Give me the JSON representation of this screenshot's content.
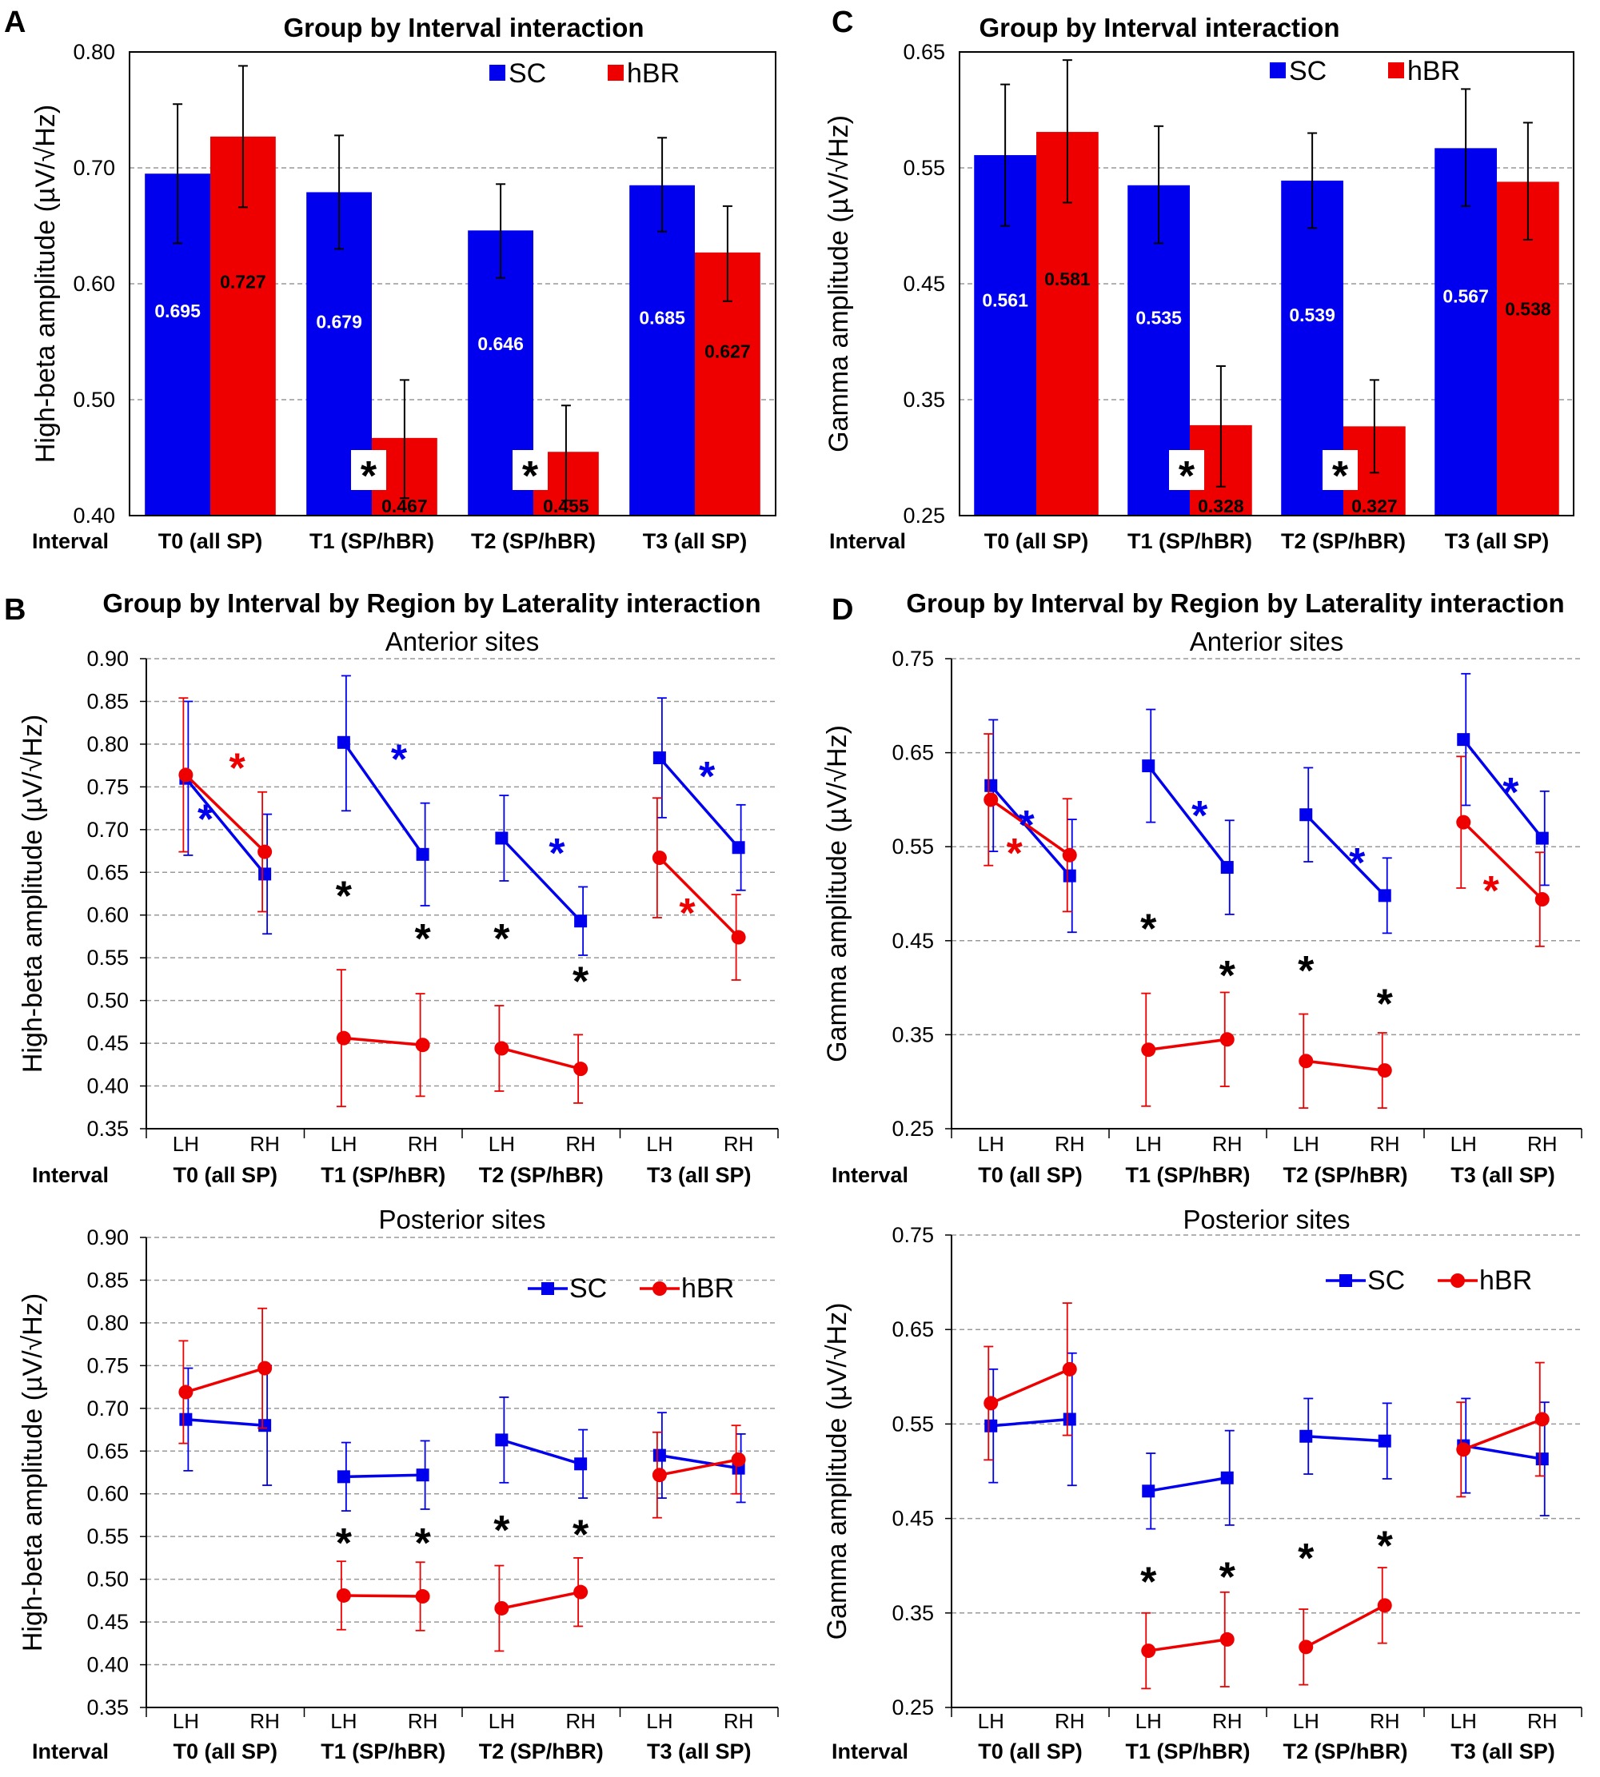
{
  "figure": {
    "colors": {
      "SC": "#0000ee",
      "hBR": "#ee0000",
      "grid": "#999999",
      "axis": "#000000"
    },
    "panels": [
      {
        "letter": "A",
        "title": "Group by Interval interaction",
        "ylabel": "High-beta amplitude (µV/√Hz)",
        "interval_label": "Interval",
        "legend": [
          "SC",
          "hBR"
        ]
      },
      {
        "letter": "C",
        "title": "Group by Interval interaction",
        "ylabel": "Gamma amplitude (µV/√Hz)",
        "interval_label": "Interval",
        "legend": [
          "SC",
          "hBR"
        ]
      },
      {
        "letter": "B",
        "title": "Group by Interval by Region by Laterality interaction",
        "ylabel": "High-beta amplitude (µV/√Hz)",
        "interval_label": "Interval",
        "subplots": [
          "Anterior sites",
          "Posterior sites"
        ],
        "legend": [
          "SC",
          "hBR"
        ]
      },
      {
        "letter": "D",
        "title": "Group by Interval by Region by Laterality interaction",
        "ylabel": "Gamma amplitude (µV/√Hz)",
        "interval_label": "Interval",
        "subplots": [
          "Anterior sites",
          "Posterior sites"
        ],
        "legend": [
          "SC",
          "hBR"
        ]
      }
    ]
  },
  "chart_data": [
    {
      "id": "A",
      "type": "bar",
      "title": "Group by Interval interaction",
      "ylabel": "High-beta amplitude (µV/√Hz)",
      "xlabel": "Interval",
      "categories": [
        "T0 (all SP)",
        "T1 (SP/hBR)",
        "T2 (SP/hBR)",
        "T3 (all SP)"
      ],
      "ylim": [
        0.4,
        0.8
      ],
      "yticks": [
        0.4,
        0.5,
        0.6,
        0.7,
        0.8
      ],
      "ytick_labels": [
        "0.40",
        "0.50",
        "0.60",
        "0.70",
        "0.80"
      ],
      "series": [
        {
          "name": "SC",
          "values": [
            0.695,
            0.679,
            0.646,
            0.685
          ],
          "labels": [
            "0.695",
            "0.679",
            "0.646",
            "0.685"
          ],
          "err_low": [
            0.635,
            0.63,
            0.605,
            0.645
          ],
          "err_high": [
            0.755,
            0.728,
            0.686,
            0.726
          ]
        },
        {
          "name": "hBR",
          "values": [
            0.727,
            0.467,
            0.455,
            0.627
          ],
          "labels": [
            "0.727",
            "0.467",
            "0.455",
            "0.627"
          ],
          "err_low": [
            0.666,
            0.415,
            0.413,
            0.585
          ],
          "err_high": [
            0.788,
            0.517,
            0.495,
            0.667
          ]
        }
      ],
      "annotations": [
        {
          "text": "*",
          "category": 1
        },
        {
          "text": "*",
          "category": 2
        }
      ]
    },
    {
      "id": "C",
      "type": "bar",
      "title": "Group by Interval interaction",
      "ylabel": "Gamma amplitude (µV/√Hz)",
      "xlabel": "Interval",
      "categories": [
        "T0 (all SP)",
        "T1 (SP/hBR)",
        "T2 (SP/hBR)",
        "T3 (all SP)"
      ],
      "ylim": [
        0.25,
        0.65
      ],
      "yticks": [
        0.25,
        0.35,
        0.45,
        0.55,
        0.65
      ],
      "ytick_labels": [
        "0.25",
        "0.35",
        "0.45",
        "0.55",
        "0.65"
      ],
      "series": [
        {
          "name": "SC",
          "values": [
            0.561,
            0.535,
            0.539,
            0.567
          ],
          "labels": [
            "0.561",
            "0.535",
            "0.539",
            "0.567"
          ],
          "err_low": [
            0.5,
            0.485,
            0.498,
            0.517
          ],
          "err_high": [
            0.622,
            0.586,
            0.58,
            0.618
          ]
        },
        {
          "name": "hBR",
          "values": [
            0.581,
            0.328,
            0.327,
            0.538
          ],
          "labels": [
            "0.581",
            "0.328",
            "0.327",
            "0.538"
          ],
          "err_low": [
            0.52,
            0.275,
            0.287,
            0.488
          ],
          "err_high": [
            0.643,
            0.379,
            0.367,
            0.589
          ]
        }
      ],
      "annotations": [
        {
          "text": "*",
          "category": 1
        },
        {
          "text": "*",
          "category": 2
        }
      ]
    },
    {
      "id": "B-anterior",
      "type": "line",
      "title": "Anterior sites",
      "ylabel": "High-beta amplitude (µV/√Hz)",
      "xlabel": "Interval",
      "x": [
        "LH",
        "RH",
        "LH",
        "RH",
        "LH",
        "RH",
        "LH",
        "RH"
      ],
      "categories": [
        "T0 (all SP)",
        "T1 (SP/hBR)",
        "T2 (SP/hBR)",
        "T3 (all SP)"
      ],
      "ylim": [
        0.35,
        0.9
      ],
      "yticks": [
        0.35,
        0.4,
        0.45,
        0.5,
        0.55,
        0.6,
        0.65,
        0.7,
        0.75,
        0.8,
        0.85,
        0.9
      ],
      "ytick_labels": [
        "0.35",
        "0.40",
        "0.45",
        "0.50",
        "0.55",
        "0.60",
        "0.65",
        "0.70",
        "0.75",
        "0.80",
        "0.85",
        "0.90"
      ],
      "series": [
        {
          "name": "SC",
          "values": [
            0.76,
            0.648,
            0.802,
            0.671,
            0.69,
            0.593,
            0.784,
            0.679
          ],
          "err_low": [
            0.67,
            0.578,
            0.722,
            0.611,
            0.64,
            0.553,
            0.714,
            0.629
          ],
          "err_high": [
            0.85,
            0.718,
            0.88,
            0.731,
            0.74,
            0.633,
            0.854,
            0.729
          ]
        },
        {
          "name": "hBR",
          "values": [
            0.764,
            0.674,
            0.456,
            0.448,
            0.444,
            0.42,
            0.667,
            0.574
          ],
          "err_low": [
            0.674,
            0.604,
            0.376,
            0.388,
            0.394,
            0.38,
            0.597,
            0.524
          ],
          "err_high": [
            0.854,
            0.744,
            0.536,
            0.508,
            0.494,
            0.46,
            0.737,
            0.624
          ]
        }
      ],
      "annotations": [
        {
          "text": "*",
          "color": "hBR",
          "x": 0.65,
          "y": 0.78
        },
        {
          "text": "*",
          "color": "SC",
          "x": 0.25,
          "y": 0.72
        },
        {
          "text": "*",
          "color": "SC",
          "x": 2.7,
          "y": 0.79
        },
        {
          "text": "*",
          "color": "SC",
          "x": 4.7,
          "y": 0.68
        },
        {
          "text": "*",
          "color": "SC",
          "x": 6.6,
          "y": 0.77
        },
        {
          "text": "*",
          "color": "hBR",
          "x": 6.35,
          "y": 0.61
        },
        {
          "text": "*",
          "color": "black",
          "x": 2.0,
          "y": 0.63
        },
        {
          "text": "*",
          "color": "black",
          "x": 3.0,
          "y": 0.58
        },
        {
          "text": "*",
          "color": "black",
          "x": 4.0,
          "y": 0.58
        },
        {
          "text": "*",
          "color": "black",
          "x": 5.0,
          "y": 0.53
        }
      ]
    },
    {
      "id": "B-posterior",
      "type": "line",
      "title": "Posterior sites",
      "ylabel": "High-beta amplitude (µV/√Hz)",
      "xlabel": "Interval",
      "x": [
        "LH",
        "RH",
        "LH",
        "RH",
        "LH",
        "RH",
        "LH",
        "RH"
      ],
      "categories": [
        "T0 (all SP)",
        "T1 (SP/hBR)",
        "T2 (SP/hBR)",
        "T3 (all SP)"
      ],
      "ylim": [
        0.35,
        0.9
      ],
      "yticks": [
        0.35,
        0.4,
        0.45,
        0.5,
        0.55,
        0.6,
        0.65,
        0.7,
        0.75,
        0.8,
        0.85,
        0.9
      ],
      "ytick_labels": [
        "0.35",
        "0.40",
        "0.45",
        "0.50",
        "0.55",
        "0.60",
        "0.65",
        "0.70",
        "0.75",
        "0.80",
        "0.85",
        "0.90"
      ],
      "legend_position": "top-right",
      "series": [
        {
          "name": "SC",
          "values": [
            0.687,
            0.68,
            0.62,
            0.622,
            0.663,
            0.635,
            0.645,
            0.63
          ],
          "err_low": [
            0.627,
            0.61,
            0.58,
            0.582,
            0.613,
            0.595,
            0.595,
            0.59
          ],
          "err_high": [
            0.747,
            0.75,
            0.66,
            0.662,
            0.713,
            0.675,
            0.695,
            0.67
          ]
        },
        {
          "name": "hBR",
          "values": [
            0.719,
            0.747,
            0.481,
            0.48,
            0.466,
            0.485,
            0.622,
            0.64
          ],
          "err_low": [
            0.659,
            0.677,
            0.441,
            0.44,
            0.416,
            0.445,
            0.572,
            0.6
          ],
          "err_high": [
            0.779,
            0.817,
            0.521,
            0.52,
            0.516,
            0.525,
            0.672,
            0.68
          ]
        }
      ],
      "annotations": [
        {
          "text": "*",
          "color": "black",
          "x": 2.0,
          "y": 0.55
        },
        {
          "text": "*",
          "color": "black",
          "x": 3.0,
          "y": 0.55
        },
        {
          "text": "*",
          "color": "black",
          "x": 4.0,
          "y": 0.565
        },
        {
          "text": "*",
          "color": "black",
          "x": 5.0,
          "y": 0.56
        }
      ]
    },
    {
      "id": "D-anterior",
      "type": "line",
      "title": "Anterior sites",
      "ylabel": "Gamma amplitude (µV/√Hz)",
      "xlabel": "Interval",
      "x": [
        "LH",
        "RH",
        "LH",
        "RH",
        "LH",
        "RH",
        "LH",
        "RH"
      ],
      "categories": [
        "T0 (all SP)",
        "T1 (SP/hBR)",
        "T2 (SP/hBR)",
        "T3 (all SP)"
      ],
      "ylim": [
        0.25,
        0.75
      ],
      "yticks": [
        0.25,
        0.35,
        0.45,
        0.55,
        0.65,
        0.75
      ],
      "ytick_labels": [
        "0.25",
        "0.35",
        "0.45",
        "0.55",
        "0.65",
        "0.75"
      ],
      "series": [
        {
          "name": "SC",
          "values": [
            0.615,
            0.519,
            0.636,
            0.528,
            0.584,
            0.498,
            0.664,
            0.559
          ],
          "err_low": [
            0.545,
            0.459,
            0.576,
            0.478,
            0.534,
            0.458,
            0.594,
            0.509
          ],
          "err_high": [
            0.685,
            0.579,
            0.696,
            0.578,
            0.634,
            0.538,
            0.734,
            0.609
          ]
        },
        {
          "name": "hBR",
          "values": [
            0.6,
            0.541,
            0.334,
            0.345,
            0.322,
            0.312,
            0.576,
            0.494
          ],
          "err_low": [
            0.53,
            0.481,
            0.274,
            0.295,
            0.272,
            0.272,
            0.506,
            0.444
          ],
          "err_high": [
            0.67,
            0.601,
            0.394,
            0.395,
            0.372,
            0.352,
            0.646,
            0.544
          ]
        }
      ],
      "annotations": [
        {
          "text": "*",
          "color": "SC",
          "x": 0.45,
          "y": 0.58
        },
        {
          "text": "*",
          "color": "hBR",
          "x": 0.3,
          "y": 0.55
        },
        {
          "text": "*",
          "color": "SC",
          "x": 2.65,
          "y": 0.59
        },
        {
          "text": "*",
          "color": "SC",
          "x": 4.65,
          "y": 0.54
        },
        {
          "text": "*",
          "color": "SC",
          "x": 6.6,
          "y": 0.615
        },
        {
          "text": "*",
          "color": "hBR",
          "x": 6.35,
          "y": 0.51
        },
        {
          "text": "*",
          "color": "black",
          "x": 2.0,
          "y": 0.47
        },
        {
          "text": "*",
          "color": "black",
          "x": 3.0,
          "y": 0.42
        },
        {
          "text": "*",
          "color": "black",
          "x": 4.0,
          "y": 0.425
        },
        {
          "text": "*",
          "color": "black",
          "x": 5.0,
          "y": 0.39
        }
      ]
    },
    {
      "id": "D-posterior",
      "type": "line",
      "title": "Posterior sites",
      "ylabel": "Gamma amplitude (µV/√Hz)",
      "xlabel": "Interval",
      "x": [
        "LH",
        "RH",
        "LH",
        "RH",
        "LH",
        "RH",
        "LH",
        "RH"
      ],
      "categories": [
        "T0 (all SP)",
        "T1 (SP/hBR)",
        "T2 (SP/hBR)",
        "T3 (all SP)"
      ],
      "ylim": [
        0.25,
        0.75
      ],
      "yticks": [
        0.25,
        0.35,
        0.45,
        0.55,
        0.65,
        0.75
      ],
      "ytick_labels": [
        "0.25",
        "0.35",
        "0.45",
        "0.55",
        "0.65",
        "0.75"
      ],
      "legend_position": "top-right",
      "series": [
        {
          "name": "SC",
          "values": [
            0.548,
            0.555,
            0.479,
            0.493,
            0.537,
            0.532,
            0.527,
            0.513
          ],
          "err_low": [
            0.488,
            0.485,
            0.439,
            0.443,
            0.497,
            0.492,
            0.477,
            0.453
          ],
          "err_high": [
            0.608,
            0.625,
            0.519,
            0.543,
            0.577,
            0.572,
            0.577,
            0.573
          ]
        },
        {
          "name": "hBR",
          "values": [
            0.572,
            0.608,
            0.31,
            0.322,
            0.314,
            0.358,
            0.523,
            0.555
          ],
          "err_low": [
            0.512,
            0.538,
            0.27,
            0.272,
            0.274,
            0.318,
            0.473,
            0.495
          ],
          "err_high": [
            0.632,
            0.678,
            0.35,
            0.372,
            0.354,
            0.398,
            0.573,
            0.615
          ]
        }
      ],
      "annotations": [
        {
          "text": "*",
          "color": "black",
          "x": 2.0,
          "y": 0.39
        },
        {
          "text": "*",
          "color": "black",
          "x": 3.0,
          "y": 0.395
        },
        {
          "text": "*",
          "color": "black",
          "x": 4.0,
          "y": 0.415
        },
        {
          "text": "*",
          "color": "black",
          "x": 5.0,
          "y": 0.428
        }
      ]
    }
  ]
}
